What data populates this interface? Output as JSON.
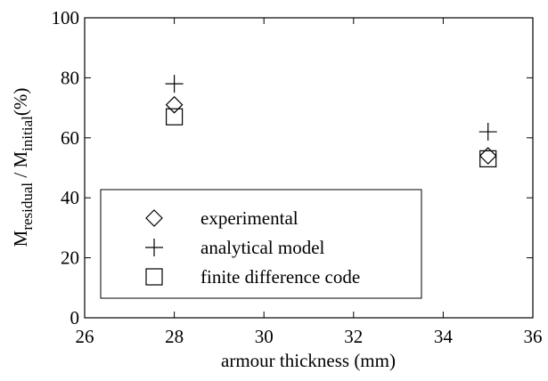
{
  "chart_data": {
    "type": "scatter",
    "x_label": "armour thickness (mm)",
    "y_label_parts": [
      "M",
      "residual",
      " / M",
      "initial",
      "(%)"
    ],
    "xlim": [
      26,
      36
    ],
    "xticks": [
      26,
      28,
      30,
      32,
      34,
      36
    ],
    "ylim": [
      0,
      100
    ],
    "yticks": [
      0,
      20,
      40,
      60,
      80,
      100
    ],
    "legend": "lower left",
    "series": [
      {
        "name": "experimental",
        "marker": "diamond",
        "color": "#000000",
        "x": [
          28,
          35
        ],
        "values": [
          71,
          54
        ]
      },
      {
        "name": "analytical model",
        "marker": "plus",
        "color": "#000000",
        "x": [
          28,
          35
        ],
        "values": [
          78,
          62
        ]
      },
      {
        "name": "finite difference code",
        "marker": "square",
        "color": "#000000",
        "x": [
          28,
          35
        ],
        "values": [
          67,
          53
        ]
      }
    ]
  }
}
